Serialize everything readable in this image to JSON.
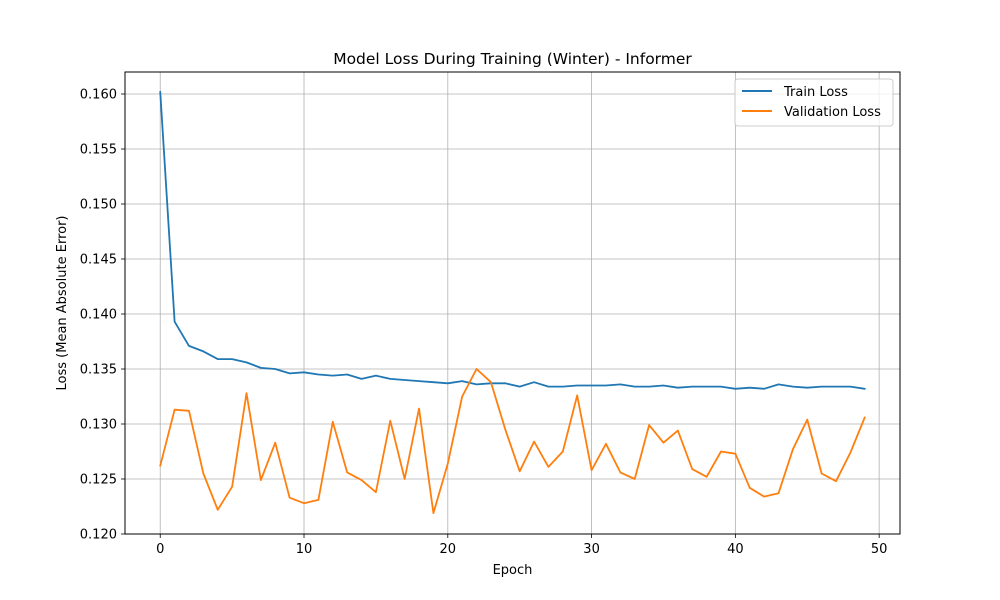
{
  "chart_data": {
    "type": "line",
    "title": "Model Loss During Training (Winter) - Informer",
    "xlabel": "Epoch",
    "ylabel": "Loss (Mean Absolute Error)",
    "xlim": [
      -2.45,
      51.45
    ],
    "ylim": [
      0.12,
      0.162
    ],
    "xticks": [
      0,
      10,
      20,
      30,
      40,
      50
    ],
    "yticks": [
      0.12,
      0.125,
      0.13,
      0.135,
      0.14,
      0.145,
      0.15,
      0.155,
      0.16
    ],
    "ytick_labels": [
      "0.120",
      "0.125",
      "0.130",
      "0.135",
      "0.140",
      "0.145",
      "0.150",
      "0.155",
      "0.160"
    ],
    "grid": true,
    "legend_position": "top-right",
    "x": [
      0,
      1,
      2,
      3,
      4,
      5,
      6,
      7,
      8,
      9,
      10,
      11,
      12,
      13,
      14,
      15,
      16,
      17,
      18,
      19,
      20,
      21,
      22,
      23,
      24,
      25,
      26,
      27,
      28,
      29,
      30,
      31,
      32,
      33,
      34,
      35,
      36,
      37,
      38,
      39,
      40,
      41,
      42,
      43,
      44,
      45,
      46,
      47,
      48,
      49
    ],
    "series": [
      {
        "name": "Train Loss",
        "color": "#1f77b4",
        "values": [
          0.1602,
          0.1393,
          0.1371,
          0.1366,
          0.1359,
          0.1359,
          0.1356,
          0.1351,
          0.135,
          0.1346,
          0.1347,
          0.1345,
          0.1344,
          0.1345,
          0.1341,
          0.1344,
          0.1341,
          0.134,
          0.1339,
          0.1338,
          0.1337,
          0.1339,
          0.1336,
          0.1337,
          0.1337,
          0.1334,
          0.1338,
          0.1334,
          0.1334,
          0.1335,
          0.1335,
          0.1335,
          0.1336,
          0.1334,
          0.1334,
          0.1335,
          0.1333,
          0.1334,
          0.1334,
          0.1334,
          0.1332,
          0.1333,
          0.1332,
          0.1336,
          0.1334,
          0.1333,
          0.1334,
          0.1334,
          0.1334,
          0.1332
        ]
      },
      {
        "name": "Validation Loss",
        "color": "#ff7f0e",
        "values": [
          0.1262,
          0.1313,
          0.1312,
          0.1255,
          0.1222,
          0.1243,
          0.1328,
          0.1249,
          0.1283,
          0.1233,
          0.1228,
          0.1231,
          0.1302,
          0.1256,
          0.1249,
          0.1238,
          0.1303,
          0.125,
          0.1314,
          0.1219,
          0.1264,
          0.1325,
          0.135,
          0.1338,
          0.1295,
          0.1257,
          0.1284,
          0.1261,
          0.1275,
          0.1326,
          0.1258,
          0.1282,
          0.1256,
          0.125,
          0.1299,
          0.1283,
          0.1294,
          0.1259,
          0.1252,
          0.1275,
          0.1273,
          0.1242,
          0.1234,
          0.1237,
          0.1277,
          0.1304,
          0.1255,
          0.1248,
          0.1274,
          0.1306
        ]
      }
    ]
  }
}
